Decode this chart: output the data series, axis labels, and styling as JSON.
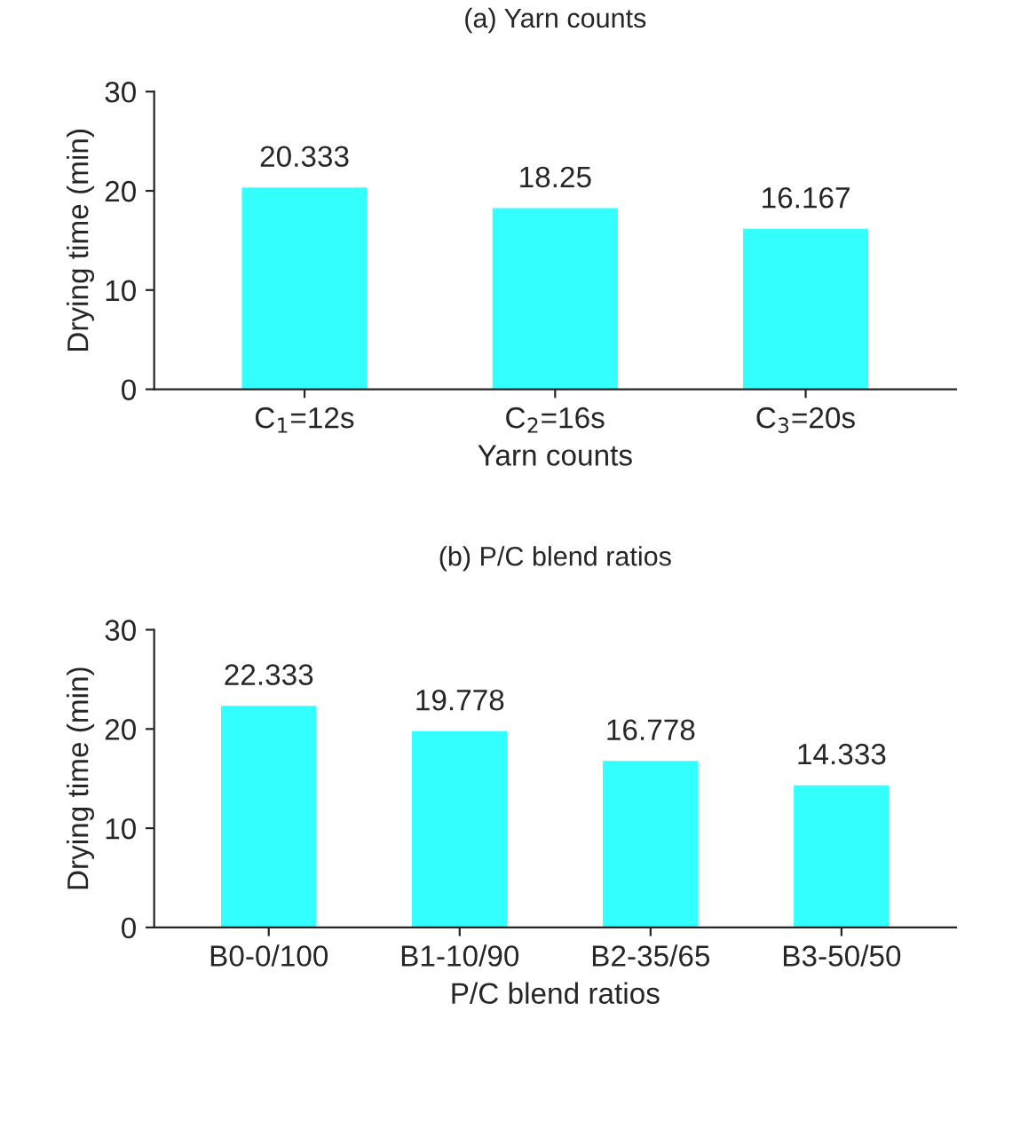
{
  "chart_data": [
    {
      "type": "bar",
      "title": "(a) Yarn counts",
      "xlabel": "Yarn counts",
      "ylabel": "Drying time (min)",
      "categories": [
        "C$_{1}$=12s",
        "C$_{2}$=16s",
        "C$_{3}$=20s"
      ],
      "values": [
        20.333,
        18.25,
        16.167
      ],
      "color": "#33ffff",
      "ylim": [
        0,
        30
      ],
      "yticks": [
        0,
        10,
        20,
        30
      ],
      "data_labels": true,
      "grid": false
    },
    {
      "type": "bar",
      "title": "(b) P/C blend ratios",
      "xlabel": "P/C blend ratios",
      "ylabel": "Drying time (min)",
      "categories": [
        "B0-0/100",
        "B1-10/90",
        "B2-35/65",
        "B3-50/50"
      ],
      "values": [
        22.333,
        19.778,
        16.778,
        14.333
      ],
      "color": "#33ffff",
      "ylim": [
        0,
        30
      ],
      "yticks": [
        0,
        10,
        20,
        30
      ],
      "data_labels": true,
      "grid": false
    }
  ]
}
